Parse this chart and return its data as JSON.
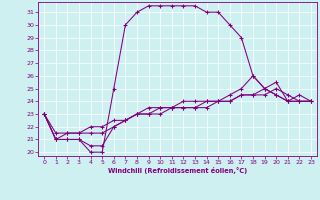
{
  "xlabel": "Windchill (Refroidissement éolien,°C)",
  "bg_color": "#cff0f0",
  "line_color": "#800080",
  "xlim": [
    -0.5,
    23.5
  ],
  "ylim": [
    19.7,
    31.8
  ],
  "yticks": [
    20,
    21,
    22,
    23,
    24,
    25,
    26,
    27,
    28,
    29,
    30,
    31
  ],
  "xticks": [
    0,
    1,
    2,
    3,
    4,
    5,
    6,
    7,
    8,
    9,
    10,
    11,
    12,
    13,
    14,
    15,
    16,
    17,
    18,
    19,
    20,
    21,
    22,
    23
  ],
  "series": [
    [
      23.0,
      21.0,
      21.0,
      21.0,
      20.0,
      20.0,
      25.0,
      30.0,
      31.0,
      31.5,
      31.5,
      31.5,
      31.5,
      31.5,
      31.0,
      31.0,
      30.0,
      29.0,
      26.0,
      25.0,
      24.5,
      24.0,
      24.0,
      24.0
    ],
    [
      23.0,
      21.0,
      21.0,
      21.0,
      20.5,
      20.5,
      22.0,
      22.5,
      23.0,
      23.5,
      23.5,
      23.5,
      24.0,
      24.0,
      24.0,
      24.0,
      24.5,
      25.0,
      26.0,
      25.0,
      24.5,
      24.0,
      24.0,
      24.0
    ],
    [
      23.0,
      21.0,
      21.5,
      21.5,
      21.5,
      21.5,
      22.0,
      22.5,
      23.0,
      23.0,
      23.5,
      23.5,
      23.5,
      23.5,
      24.0,
      24.0,
      24.0,
      24.5,
      24.5,
      24.5,
      25.0,
      24.5,
      24.0,
      24.0
    ],
    [
      23.0,
      21.5,
      21.5,
      21.5,
      22.0,
      22.0,
      22.5,
      22.5,
      23.0,
      23.0,
      23.0,
      23.5,
      23.5,
      23.5,
      23.5,
      24.0,
      24.0,
      24.5,
      24.5,
      25.0,
      25.5,
      24.0,
      24.5,
      24.0
    ]
  ],
  "tick_fontsize": 4.5,
  "label_fontsize": 4.8,
  "marker_size": 3.0,
  "line_width": 0.75
}
